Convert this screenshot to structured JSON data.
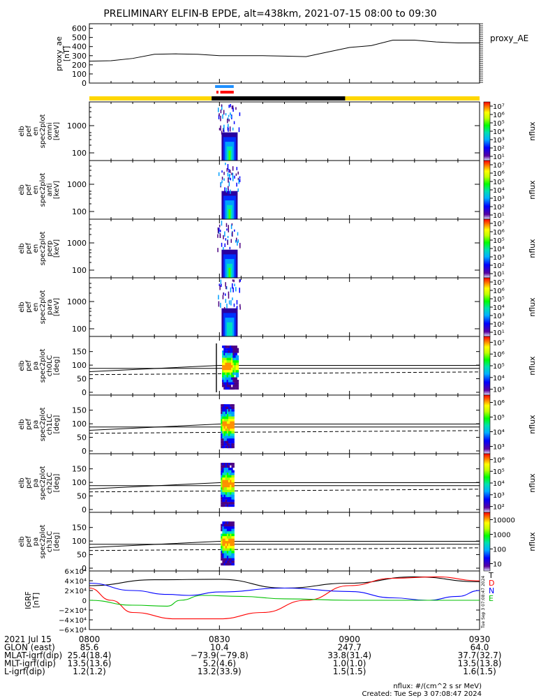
{
  "title": "PRELIMINARY ELFIN-B EPDE, alt=438km, 2021-07-15 08:00 to 09:30",
  "chart_data": [
    {
      "type": "line",
      "panel": "proxy_ae",
      "ylabel": "proxy_ae [nT]",
      "legend": "proxy_AE",
      "yticks": [
        "0",
        "100",
        "200",
        "300",
        "400",
        "500",
        "600"
      ],
      "ylim": [
        0,
        650
      ],
      "x_minutes": [
        0,
        5,
        10,
        15,
        20,
        25,
        30,
        35,
        40,
        45,
        50,
        55,
        60,
        65,
        70,
        75,
        80,
        85,
        90
      ],
      "values": [
        240,
        245,
        270,
        315,
        320,
        315,
        300,
        300,
        300,
        295,
        290,
        340,
        390,
        410,
        470,
        470,
        450,
        440,
        440
      ]
    },
    {
      "type": "heatmap",
      "panels": [
        {
          "ylabel": [
            "elb",
            "pef",
            "en",
            "spec2plot",
            "omni",
            "[keV]"
          ]
        },
        {
          "ylabel": [
            "elb",
            "pef",
            "en",
            "spec2plot",
            "anti",
            "[keV]"
          ]
        },
        {
          "ylabel": [
            "elb",
            "pef",
            "en",
            "spec2plot",
            "perp",
            "[keV]"
          ]
        },
        {
          "ylabel": [
            "elb",
            "pef",
            "en",
            "spec2plot",
            "para",
            "[keV]"
          ]
        }
      ],
      "yticks": [
        "100",
        "1000"
      ],
      "colorbar": {
        "label": "nflux",
        "ticks": [
          "10¹",
          "10²",
          "10³",
          "10⁴",
          "10⁵",
          "10⁶",
          "10⁷"
        ]
      }
    },
    {
      "type": "heatmap",
      "panels": [
        {
          "ylabel": [
            "elb",
            "pef",
            "pa",
            "spec2plot",
            "ch0LC",
            "[deg]"
          ],
          "cbticks": [
            "10³",
            "10⁴",
            "10⁵",
            "10⁶",
            "10⁷"
          ]
        },
        {
          "ylabel": [
            "elb",
            "pef",
            "pa",
            "spec2plot",
            "ch1LC",
            "[deg]"
          ],
          "cbticks": [
            "10³",
            "10⁴",
            "10⁵",
            "10⁶"
          ]
        },
        {
          "ylabel": [
            "elb",
            "pef",
            "pa",
            "spec2plot",
            "ch2LC",
            "[deg]"
          ],
          "cbticks": [
            "10²",
            "10³",
            "10⁴",
            "10⁵",
            "10⁶"
          ]
        },
        {
          "ylabel": [
            "elb",
            "pef",
            "pa",
            "spec2plot",
            "ch3LC",
            "[deg]"
          ],
          "cbticks": [
            "10",
            "100",
            "1000",
            "10000"
          ]
        }
      ],
      "yticks": [
        "0",
        "50",
        "100",
        "150"
      ],
      "colorbar_label": "nflux"
    },
    {
      "type": "line",
      "panel": "IGRF",
      "ylabel": "IGRF [nT]",
      "yticks": [
        "−6×10⁴",
        "−4×10⁴",
        "−2×10⁴",
        "0",
        "2×10⁴",
        "4×10⁴",
        "6×10⁴"
      ],
      "ylim": [
        -60000,
        60000
      ],
      "series": [
        {
          "name": "T",
          "color": "#000000",
          "x": [
            0,
            15,
            30,
            45,
            60,
            75,
            90
          ],
          "values": [
            30000,
            42000,
            43000,
            25000,
            35000,
            48000,
            38000
          ]
        },
        {
          "name": "D",
          "color": "#ff0000",
          "x": [
            0,
            5,
            10,
            20,
            30,
            40,
            50,
            60,
            70,
            80,
            90
          ],
          "values": [
            25000,
            0,
            -25000,
            -38000,
            -38000,
            -25000,
            0,
            30000,
            45000,
            48000,
            40000
          ]
        },
        {
          "name": "N",
          "color": "#0000ff",
          "x": [
            0,
            10,
            18,
            23,
            30,
            45,
            60,
            70,
            78,
            85,
            90
          ],
          "values": [
            35000,
            20000,
            12000,
            10000,
            17000,
            25000,
            18000,
            5000,
            0,
            8000,
            20000
          ]
        },
        {
          "name": "E",
          "color": "#00c000",
          "x": [
            0,
            10,
            18,
            21,
            26,
            35,
            45,
            60,
            90
          ],
          "values": [
            0,
            -10000,
            -12000,
            0,
            10000,
            8000,
            3000,
            0,
            0
          ]
        }
      ]
    }
  ],
  "xaxis": {
    "rows": [
      {
        "label": "2021 Jul 15",
        "values": [
          "0800",
          "0830",
          "0900",
          "0930"
        ]
      },
      {
        "label": "GLON (east)",
        "values": [
          "85.6",
          "10.4",
          "247.7",
          "64.0"
        ]
      },
      {
        "label": "MLAT-igrf(dip)",
        "values": [
          "25.4(18.4)",
          "−73.9(−79.8)",
          "33.8(31.4)",
          "37.7(32.7)"
        ]
      },
      {
        "label": "MLT-igrf(dip)",
        "values": [
          "13.5(13.6)",
          "5.2(4.6)",
          "1.0(1.0)",
          "13.5(13.8)"
        ]
      },
      {
        "label": "L-igrf(dip)",
        "values": [
          "1.2(1.2)",
          "13.2(33.9)",
          "1.5(1.5)",
          "1.6(1.5)"
        ]
      }
    ]
  },
  "footer": {
    "units": "nflux: #/(cm^2 s sr MeV)",
    "created": "Created: Tue Sep  3 07:08:47 2024",
    "side_stamp": "Tue Sep  3 07:08:47 2024"
  }
}
